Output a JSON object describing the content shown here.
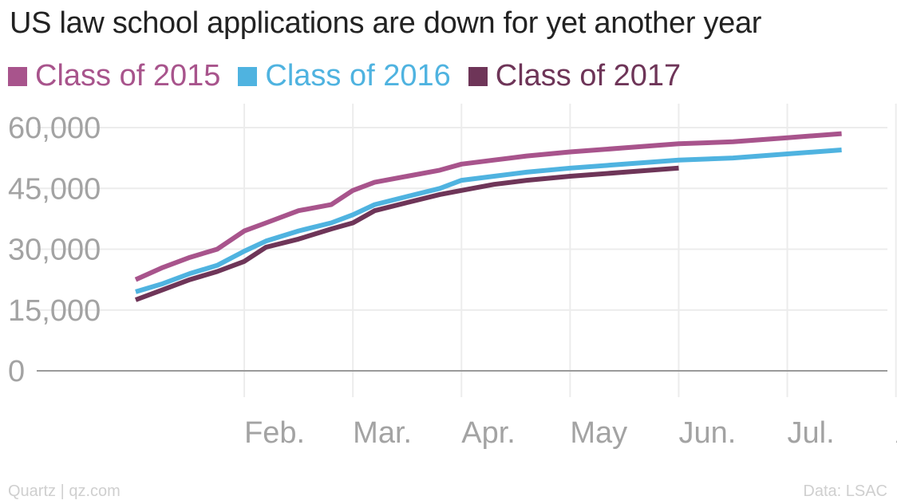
{
  "title": "US law school applications are down for yet another year",
  "footer": {
    "source_left": "Quartz | qz.com",
    "source_right": "Data: LSAC"
  },
  "chart_data": {
    "type": "line",
    "title": "US law school applications are down for yet another year",
    "xlabel": "",
    "ylabel": "",
    "ylim": [
      0,
      60000
    ],
    "yticks": [
      0,
      15000,
      30000,
      45000,
      60000
    ],
    "ytick_labels": [
      "0",
      "15,000",
      "30,000",
      "45,000",
      "60,000"
    ],
    "xlim": [
      0,
      6.65
    ],
    "xticks": [
      1,
      2,
      3,
      4,
      5,
      6,
      7
    ],
    "xtick_labels": [
      "Feb.",
      "Mar.",
      "Apr.",
      "May",
      "Jun.",
      "Jul.",
      "Aug."
    ],
    "grid": true,
    "legend": "top-left",
    "series": [
      {
        "name": "Class of 2015",
        "color": "#a8548c",
        "x": [
          0.0,
          0.25,
          0.5,
          0.75,
          1.0,
          1.2,
          1.5,
          1.8,
          2.0,
          2.2,
          2.5,
          2.8,
          3.0,
          3.3,
          3.6,
          4.0,
          4.5,
          5.0,
          5.5,
          6.0,
          6.5
        ],
        "y": [
          22500,
          25500,
          28000,
          30000,
          34500,
          36500,
          39500,
          41000,
          44500,
          46500,
          48000,
          49500,
          51000,
          52000,
          53000,
          54000,
          55000,
          56000,
          56500,
          57500,
          58500
        ]
      },
      {
        "name": "Class of 2016",
        "color": "#4fb3e0",
        "x": [
          0.0,
          0.25,
          0.5,
          0.75,
          1.0,
          1.2,
          1.5,
          1.8,
          2.0,
          2.2,
          2.5,
          2.8,
          3.0,
          3.3,
          3.6,
          4.0,
          4.5,
          5.0,
          5.5,
          6.0,
          6.5
        ],
        "y": [
          19500,
          21500,
          24000,
          26000,
          29500,
          32000,
          34500,
          36500,
          38500,
          41000,
          43000,
          45000,
          47000,
          48000,
          49000,
          50000,
          51000,
          52000,
          52500,
          53500,
          54500
        ]
      },
      {
        "name": "Class of 2017",
        "color": "#6e3558",
        "x": [
          0.0,
          0.25,
          0.5,
          0.75,
          1.0,
          1.2,
          1.5,
          1.8,
          2.0,
          2.2,
          2.5,
          2.8,
          3.0,
          3.3,
          3.6,
          4.0,
          4.5,
          5.0
        ],
        "y": [
          17500,
          20000,
          22500,
          24500,
          27000,
          30500,
          32500,
          35000,
          36500,
          39500,
          41500,
          43500,
          44500,
          46000,
          47000,
          48000,
          49000,
          50000
        ]
      }
    ]
  }
}
